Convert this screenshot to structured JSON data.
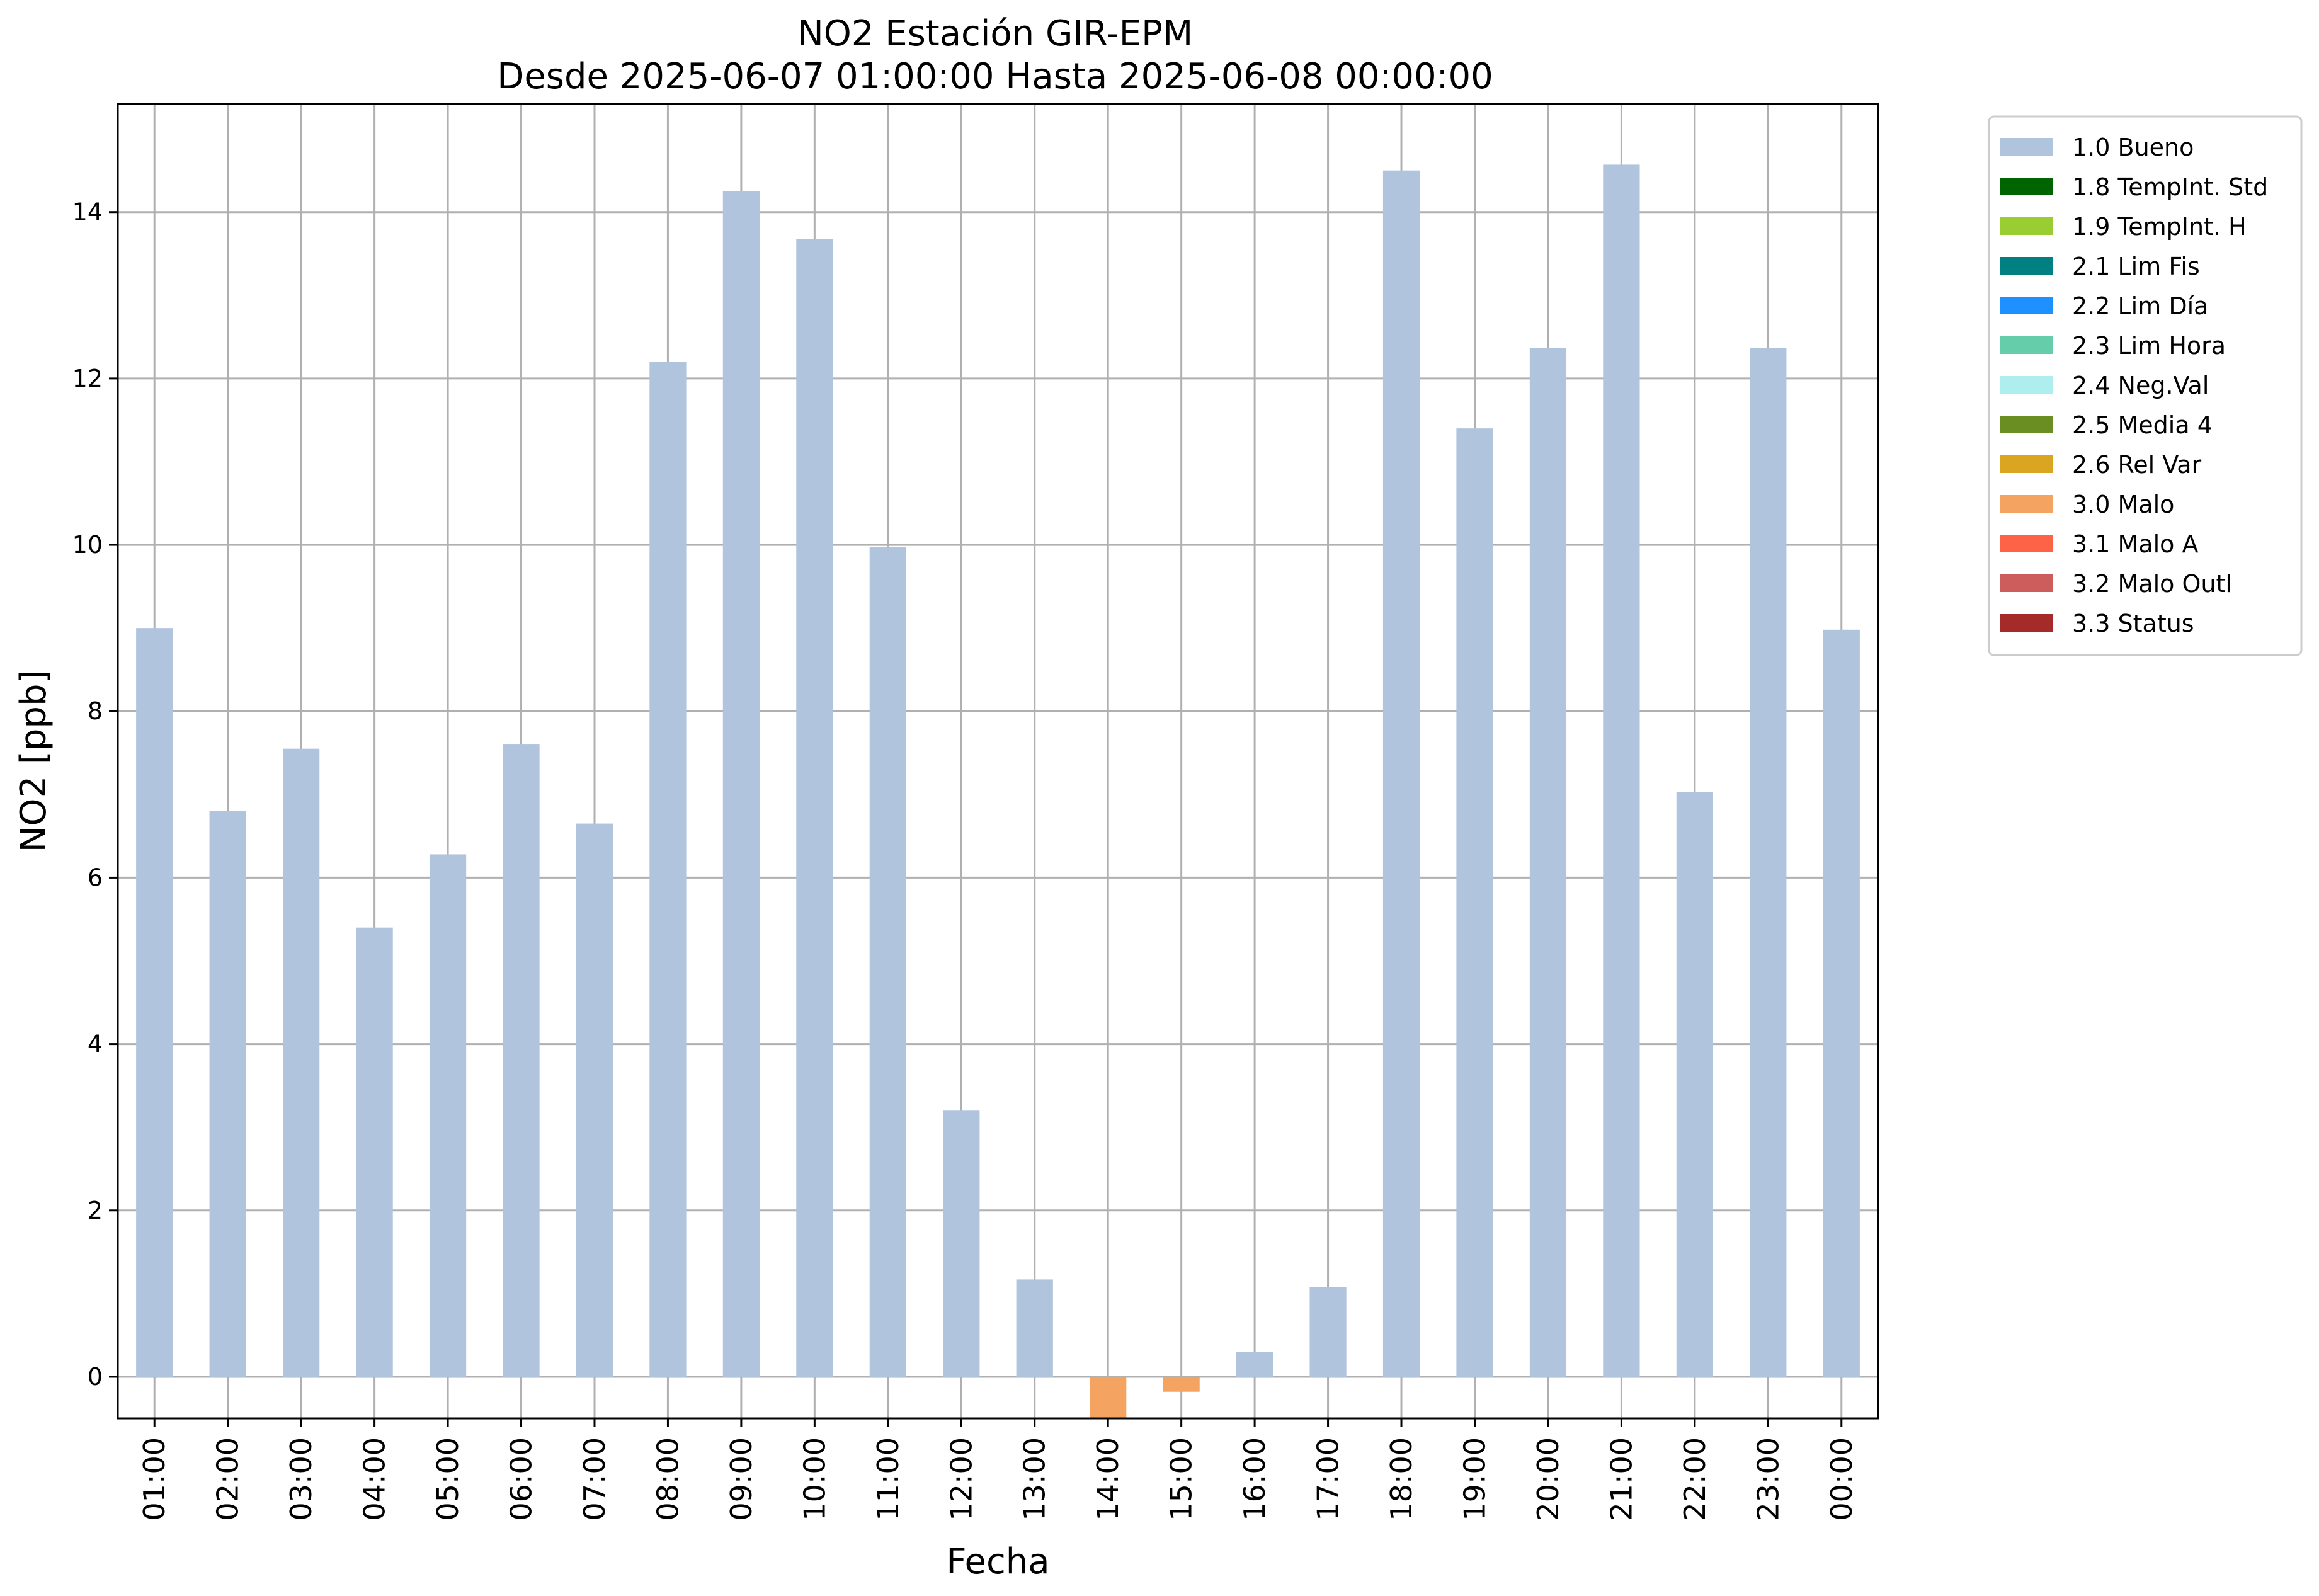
{
  "chart_data": {
    "type": "bar",
    "title": "NO2 Estación GIR-EPM",
    "subtitle": "Desde 2025-06-07 01:00:00 Hasta 2025-06-08 00:00:00",
    "xlabel": "Fecha",
    "ylabel": "NO2 [ppb]",
    "ylim": [
      -0.5,
      15.3
    ],
    "yticks": [
      0,
      2,
      4,
      6,
      8,
      10,
      12,
      14
    ],
    "grid": true,
    "legend_position": "outside-right",
    "categories": [
      "01:00",
      "02:00",
      "03:00",
      "04:00",
      "05:00",
      "06:00",
      "07:00",
      "08:00",
      "09:00",
      "10:00",
      "11:00",
      "12:00",
      "13:00",
      "14:00",
      "15:00",
      "16:00",
      "17:00",
      "18:00",
      "19:00",
      "20:00",
      "21:00",
      "22:00",
      "23:00",
      "00:00"
    ],
    "values": [
      9.0,
      6.8,
      7.55,
      5.4,
      6.28,
      7.6,
      6.65,
      12.2,
      14.25,
      13.68,
      9.97,
      3.2,
      1.17,
      -0.55,
      -0.18,
      0.3,
      1.08,
      14.5,
      11.4,
      12.37,
      14.57,
      7.03,
      12.37,
      8.98
    ],
    "flags": [
      "1.0 Bueno",
      "1.0 Bueno",
      "1.0 Bueno",
      "1.0 Bueno",
      "1.0 Bueno",
      "1.0 Bueno",
      "1.0 Bueno",
      "1.0 Bueno",
      "1.0 Bueno",
      "1.0 Bueno",
      "1.0 Bueno",
      "1.0 Bueno",
      "1.0 Bueno",
      "3.0 Malo",
      "3.0 Malo",
      "1.0 Bueno",
      "1.0 Bueno",
      "1.0 Bueno",
      "1.0 Bueno",
      "1.0 Bueno",
      "1.0 Bueno",
      "1.0 Bueno",
      "1.0 Bueno",
      "1.0 Bueno"
    ],
    "legend": [
      {
        "name": "1.0 Bueno",
        "color": "#b0c4de"
      },
      {
        "name": "1.8 TempInt. Std",
        "color": "#006400"
      },
      {
        "name": "1.9 TempInt. H",
        "color": "#9acd32"
      },
      {
        "name": "2.1 Lim Fis",
        "color": "#008080"
      },
      {
        "name": "2.2 Lim Día",
        "color": "#1e90ff"
      },
      {
        "name": "2.3 Lim Hora",
        "color": "#66cdaa"
      },
      {
        "name": "2.4 Neg.Val",
        "color": "#afeeee"
      },
      {
        "name": "2.5 Media 4",
        "color": "#6b8e23"
      },
      {
        "name": "2.6 Rel Var",
        "color": "#daa520"
      },
      {
        "name": "3.0 Malo",
        "color": "#f4a460"
      },
      {
        "name": "3.1 Malo A",
        "color": "#ff6347"
      },
      {
        "name": "3.2 Malo Outl",
        "color": "#cd5c5c"
      },
      {
        "name": "3.3 Status",
        "color": "#a52a2a"
      }
    ]
  }
}
